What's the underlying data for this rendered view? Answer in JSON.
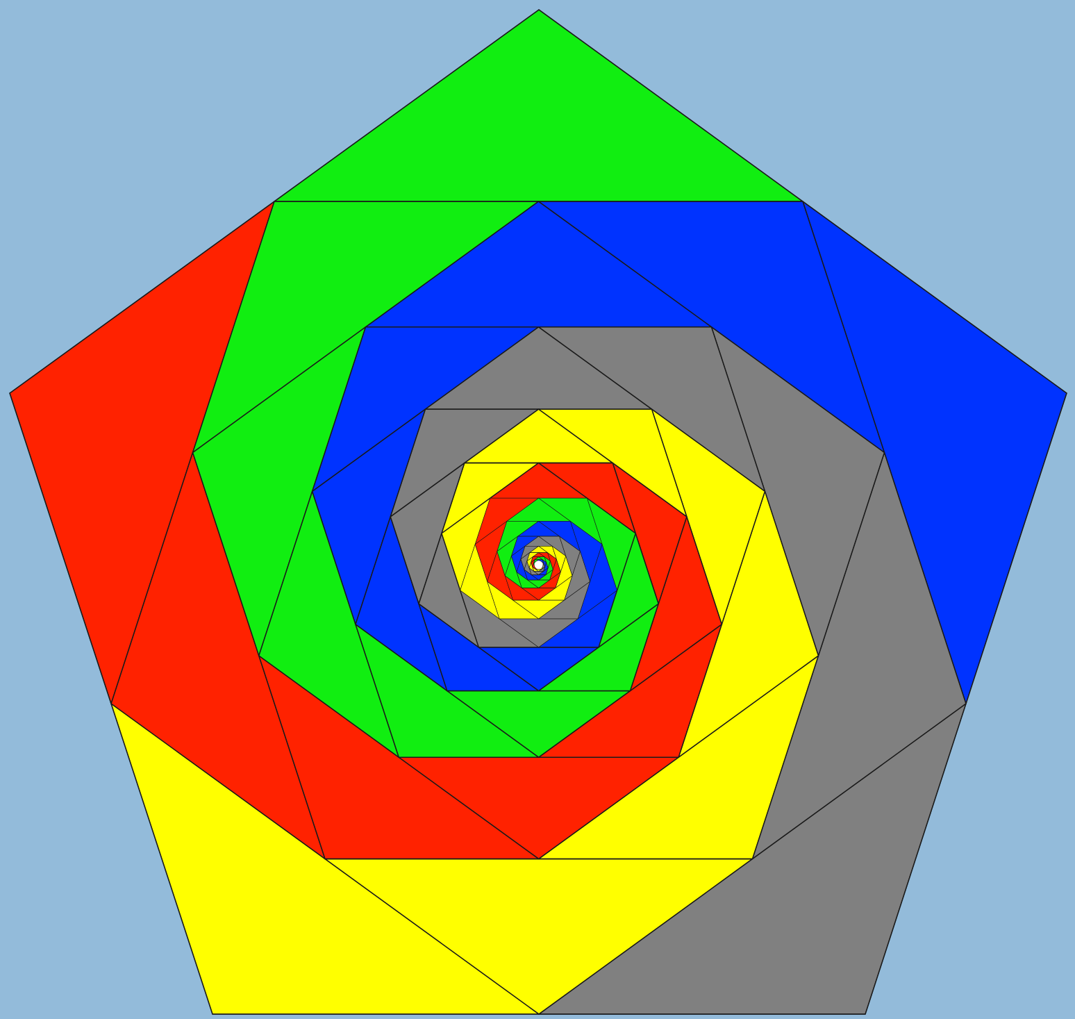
{
  "figure": {
    "background_color": "#93BBDA",
    "outline_color": "#1A1A1A",
    "center_color": "#FFFFFF",
    "palette": {
      "blue": "#0033FF",
      "gray": "#808080",
      "yellow": "#FFFF00",
      "red": "#FF2200",
      "green": "#11EE11"
    },
    "shape": "pentagon",
    "sides": 5,
    "step_fraction": 0.5,
    "levels": 26,
    "color_cycle": [
      "blue",
      "gray",
      "yellow",
      "red",
      "green"
    ]
  }
}
